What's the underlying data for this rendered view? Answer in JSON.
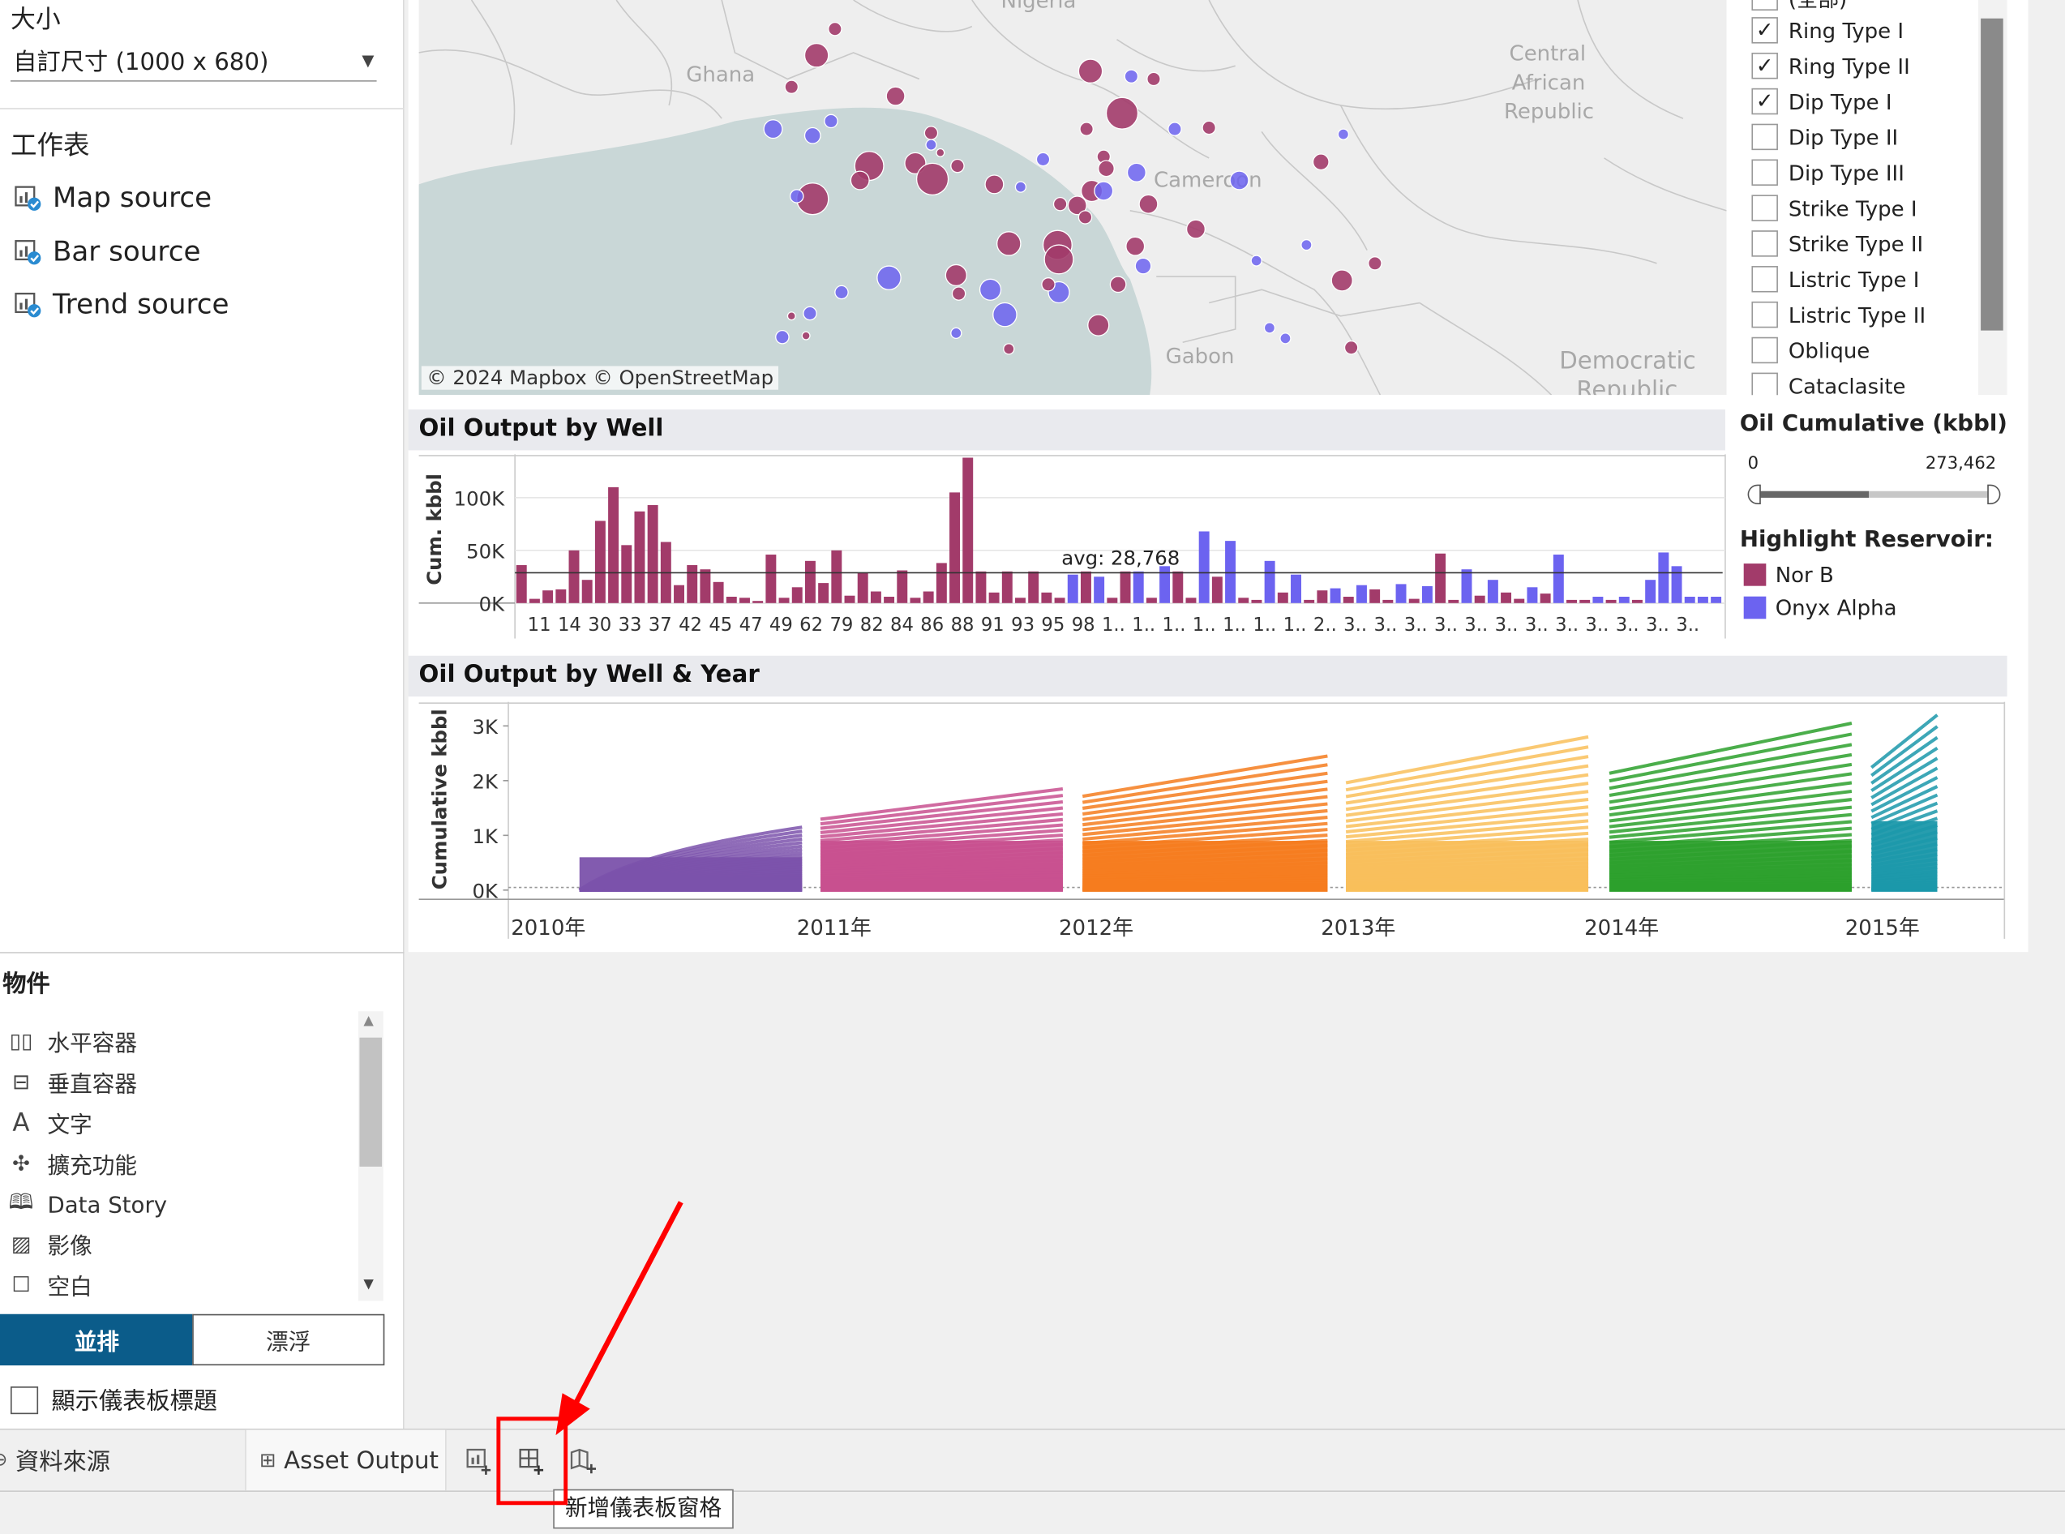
{
  "left_panel": {
    "size_label": "大小",
    "size_value": "自訂尺寸 (1000 x 680)",
    "sheets_label": "工作表",
    "sheets": [
      "Map source",
      "Bar source",
      "Trend source"
    ],
    "objects_label": "物件",
    "objects": [
      {
        "label": "水平容器",
        "icon": "horizontal-container-icon"
      },
      {
        "label": "垂直容器",
        "icon": "vertical-container-icon"
      },
      {
        "label": "文字",
        "icon": "text-icon"
      },
      {
        "label": "擴充功能",
        "icon": "extension-icon"
      },
      {
        "label": "Data Story",
        "icon": "data-story-icon"
      },
      {
        "label": "影像",
        "icon": "image-icon"
      },
      {
        "label": "空白",
        "icon": "blank-icon"
      }
    ],
    "tiled_label": "並排",
    "floating_label": "漂浮",
    "show_title_label": "顯示儀表板標題"
  },
  "map": {
    "attribution": "© 2024 Mapbox © OpenStreetMap",
    "labels": [
      "Nigeria",
      "Ghana",
      "Cameroon",
      "Gabon",
      "Central",
      "African",
      "Republic",
      "Democratic",
      "Republic"
    ]
  },
  "filter": {
    "items": [
      {
        "label": "(全部)",
        "checked": false
      },
      {
        "label": "Ring Type I",
        "checked": true
      },
      {
        "label": "Ring Type II",
        "checked": true
      },
      {
        "label": "Dip Type I",
        "checked": true
      },
      {
        "label": "Dip Type II",
        "checked": false
      },
      {
        "label": "Dip Type III",
        "checked": false
      },
      {
        "label": "Strike Type I",
        "checked": false
      },
      {
        "label": "Strike Type II",
        "checked": false
      },
      {
        "label": "Listric Type I",
        "checked": false
      },
      {
        "label": "Listric Type II",
        "checked": false
      },
      {
        "label": "Oblique",
        "checked": false
      },
      {
        "label": "Cataclasite",
        "checked": false
      }
    ]
  },
  "slider": {
    "title": "Oil Cumulative (kbbl)",
    "min_label": "0",
    "max_label": "273,462",
    "range": [
      0,
      273462
    ],
    "selected_fraction": [
      0,
      0.48
    ]
  },
  "highlight": {
    "title": "Highlight Reservoir:",
    "items": [
      {
        "label": "Nor B",
        "color": "#a23b6a"
      },
      {
        "label": "Onyx Alpha",
        "color": "#6c63f0"
      }
    ]
  },
  "bar_panel_title": "Oil Output by Well",
  "line_panel_title": "Oil Output by Well & Year",
  "tabs": {
    "datasource_label": "資料來源",
    "sheet_tab_label": "Asset Output",
    "tooltip": "新增儀表板窗格"
  },
  "colors": {
    "nor_b": "#a23b6a",
    "onyx_alpha": "#6c63f0",
    "annotation": "#ff0000",
    "tiled_active": "#0b5c8a"
  },
  "chart_data": [
    {
      "type": "bar",
      "title": "Oil Output by Well",
      "ylabel": "Cum. kbbl",
      "ylim": [
        0,
        135000
      ],
      "yticks": [
        "100K",
        "50K",
        "0K"
      ],
      "ytick_values": [
        100000,
        50000,
        0
      ],
      "reference_line": {
        "label": "avg: 28,768",
        "value": 28768
      },
      "category_labels": [
        "11",
        "14",
        "30",
        "33",
        "37",
        "42",
        "45",
        "47",
        "49",
        "62",
        "79",
        "82",
        "84",
        "86",
        "88",
        "91",
        "93",
        "95",
        "98",
        "1..",
        "1..",
        "1..",
        "1..",
        "1..",
        "1..",
        "1..",
        "2..",
        "3..",
        "3..",
        "3..",
        "3..",
        "3..",
        "3..",
        "3..",
        "3..",
        "3..",
        "3..",
        "3..",
        "3.."
      ],
      "series": [
        {
          "name": "Nor B",
          "values": [
            36000,
            4000,
            12000,
            13000,
            50000,
            22000,
            78000,
            110000,
            55000,
            87000,
            93000,
            58000,
            17000,
            36000,
            32000,
            20000,
            6000,
            5000,
            2000,
            46000,
            5000,
            15000,
            40000,
            19000,
            50000,
            7000,
            29000,
            11000,
            6000,
            31000,
            5000,
            11000,
            38000,
            105000,
            138000,
            30000,
            10000,
            30000,
            5000,
            30000,
            10000,
            5000,
            30000,
            5000,
            30000,
            5000,
            30000,
            5000,
            25000,
            5000,
            3000,
            10000,
            3000,
            12000,
            6000,
            13000,
            3000,
            4000,
            47000,
            3000,
            7000,
            10000,
            4000,
            9000,
            3000,
            3000,
            3000,
            3000
          ]
        },
        {
          "name": "Onyx Alpha",
          "values": [
            27000,
            25000,
            30000,
            35000,
            68000,
            59000,
            40000,
            27000,
            14000,
            17000,
            18000,
            16000,
            32000,
            22000,
            15000,
            46000,
            6000,
            6000,
            22000,
            48000,
            35000,
            6000,
            6000,
            6000
          ]
        }
      ]
    },
    {
      "type": "line",
      "title": "Oil Output by Well & Year",
      "ylabel": "Cumulative kbbl",
      "ylim": [
        0,
        3200
      ],
      "yticks": [
        "3K",
        "2K",
        "1K",
        "0K"
      ],
      "ytick_values": [
        3000,
        2000,
        1000,
        0
      ],
      "x": [
        "2010年",
        "2011年",
        "2012年",
        "2013年",
        "2014年",
        "2015年"
      ],
      "series": [
        {
          "name": "2010",
          "color": "#7b52ab",
          "max_end": 1150
        },
        {
          "name": "2011",
          "color": "#c8508f",
          "max_end": 1850
        },
        {
          "name": "2012",
          "color": "#f57c1f",
          "max_end": 2450
        },
        {
          "name": "2013",
          "color": "#f9bf5b",
          "max_end": 2800
        },
        {
          "name": "2014",
          "color": "#2ca02c",
          "max_end": 3050
        },
        {
          "name": "2015",
          "color": "#1b98aa",
          "max_end": 3200
        }
      ]
    }
  ]
}
